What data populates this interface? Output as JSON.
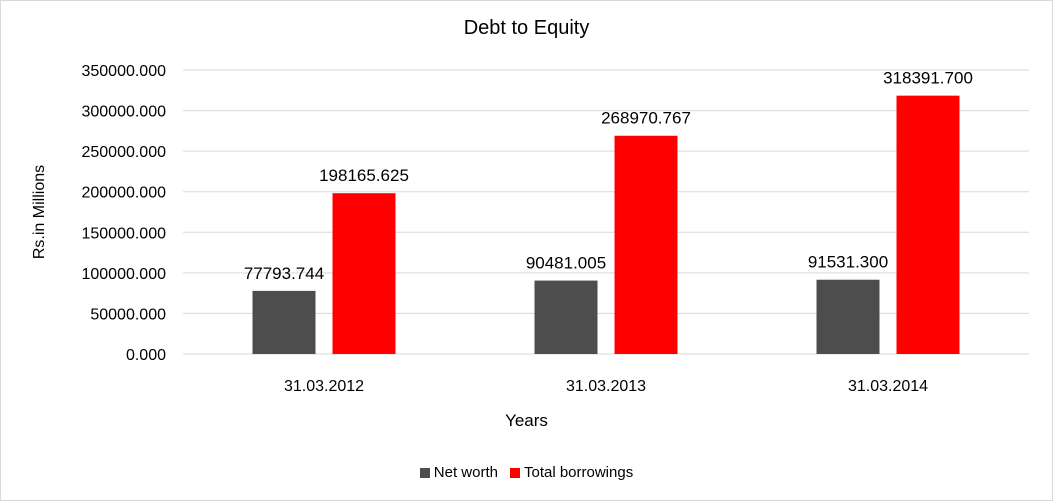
{
  "chart_data": {
    "type": "bar",
    "title": "Debt to Equity",
    "xlabel": "Years",
    "ylabel": "Rs.in Millions",
    "categories": [
      "31.03.2012",
      "31.03.2013",
      "31.03.2014"
    ],
    "series": [
      {
        "name": "Net worth",
        "color": "#4d4d4d",
        "values": [
          77793.744,
          90481.005,
          91531.3
        ],
        "labels": [
          "77793.744",
          "90481.005",
          "91531.300"
        ]
      },
      {
        "name": "Total borrowings",
        "color": "#ff0000",
        "values": [
          198165.625,
          268970.767,
          318391.7
        ],
        "labels": [
          "198165.625",
          "268970.767",
          "318391.700"
        ]
      }
    ],
    "ylim": [
      0,
      350000
    ],
    "yticks": [
      "0.000",
      "50000.000",
      "100000.000",
      "150000.000",
      "200000.000",
      "250000.000",
      "300000.000",
      "350000.000"
    ],
    "grid": true,
    "legend_position": "bottom"
  }
}
